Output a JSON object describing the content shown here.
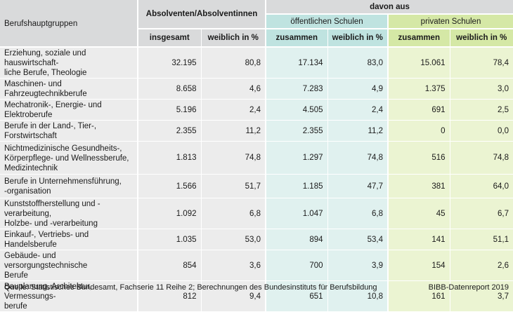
{
  "table": {
    "header": {
      "berufshauptgruppen": "Berufshauptgruppen",
      "absolventen": "Absolventen/Absolventinnen",
      "davon_aus": "davon aus",
      "oeffentliche": "öffentlichen Schulen",
      "private": "privaten Schulen",
      "insgesamt": "insgesamt",
      "weiblich1": "weiblich in %",
      "zusammen_oeff": "zusammen",
      "weiblich_oeff": "weiblich in %",
      "zusammen_priv": "zusammen",
      "weiblich_priv": "weiblich in %"
    },
    "rows": [
      {
        "label": "Erziehung, soziale und hauswirtschaft-\nliche Berufe, Theologie",
        "insgesamt": "32.195",
        "weiblich": "80,8",
        "oeff_zus": "17.134",
        "oeff_w": "83,0",
        "priv_zus": "15.061",
        "priv_w": "78,4"
      },
      {
        "label": "Maschinen- und Fahrzeugtechnikberufe",
        "insgesamt": "8.658",
        "weiblich": "4,6",
        "oeff_zus": "7.283",
        "oeff_w": "4,9",
        "priv_zus": "1.375",
        "priv_w": "3,0"
      },
      {
        "label": "Mechatronik-, Energie- und Elektroberufe",
        "insgesamt": "5.196",
        "weiblich": "2,4",
        "oeff_zus": "4.505",
        "oeff_w": "2,4",
        "priv_zus": "691",
        "priv_w": "2,5"
      },
      {
        "label": "Berufe in der Land-, Tier-, Forstwirtschaft",
        "insgesamt": "2.355",
        "weiblich": "11,2",
        "oeff_zus": "2.355",
        "oeff_w": "11,2",
        "priv_zus": "0",
        "priv_w": "0,0"
      },
      {
        "label": "Nichtmedizinische Gesundheits-,\nKörperpflege- und Wellnessberufe,\nMedizintechnik",
        "insgesamt": "1.813",
        "weiblich": "74,8",
        "oeff_zus": "1.297",
        "oeff_w": "74,8",
        "priv_zus": "516",
        "priv_w": "74,8"
      },
      {
        "label": "Berufe in Unternehmensführung,\n-organisation",
        "insgesamt": "1.566",
        "weiblich": "51,7",
        "oeff_zus": "1.185",
        "oeff_w": "47,7",
        "priv_zus": "381",
        "priv_w": "64,0"
      },
      {
        "label": "Kunststoffherstellung und -verarbeitung,\nHolzbe- und -verarbeitung",
        "insgesamt": "1.092",
        "weiblich": "6,8",
        "oeff_zus": "1.047",
        "oeff_w": "6,8",
        "priv_zus": "45",
        "priv_w": "6,7"
      },
      {
        "label": "Einkauf-, Vertriebs- und Handelsberufe",
        "insgesamt": "1.035",
        "weiblich": "53,0",
        "oeff_zus": "894",
        "oeff_w": "53,4",
        "priv_zus": "141",
        "priv_w": "51,1"
      },
      {
        "label": "Gebäude- und versorgungstechnische\nBerufe",
        "insgesamt": "854",
        "weiblich": "3,6",
        "oeff_zus": "700",
        "oeff_w": "3,9",
        "priv_zus": "154",
        "priv_w": "2,6"
      },
      {
        "label": "Bauplanung, Architektur, Vermessungs-\nberufe",
        "insgesamt": "812",
        "weiblich": "9,4",
        "oeff_zus": "651",
        "oeff_w": "10,8",
        "priv_zus": "161",
        "priv_w": "3,7"
      }
    ]
  },
  "footer": {
    "source": "Quelle: Statistisches Bundesamt, Fachserie 11 Reihe 2; Berechnungen des Bundesinstituts für Berufsbildung",
    "report": "BIBB-Datenreport 2019"
  },
  "colors": {
    "header_gray": "#d9dadb",
    "header_oeffentlich": "#bfe3e0",
    "header_privat": "#d5e8a6",
    "body_gray": "#ececec",
    "body_oeffentlich": "#e0f1ef",
    "body_privat": "#ebf4d2"
  }
}
